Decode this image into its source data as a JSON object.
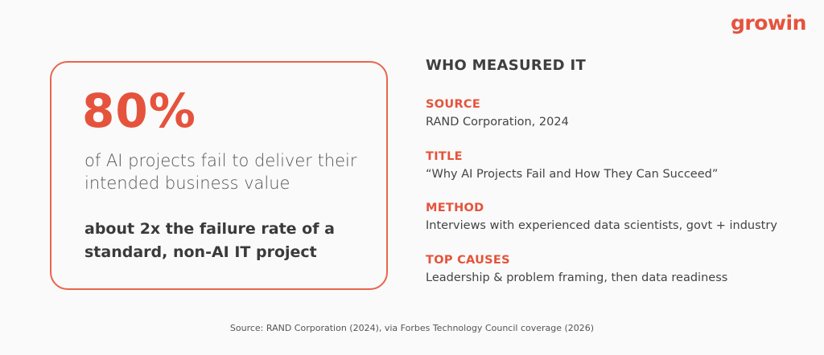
{
  "brand": {
    "logo_text": "growin",
    "accent_color": "#e5533c"
  },
  "stat_card": {
    "number": "80%",
    "description": "of AI projects fail to deliver their intended business value",
    "comparison": "about 2x the failure rate of a standard, non-AI IT project"
  },
  "details": {
    "title": "WHO MEASURED IT",
    "items": [
      {
        "label": "SOURCE",
        "value": "RAND Corporation, 2024"
      },
      {
        "label": "TITLE",
        "value": "“Why AI Projects Fail and How They Can Succeed”"
      },
      {
        "label": "METHOD",
        "value": "Interviews with experienced data scientists, govt + industry"
      },
      {
        "label": "TOP CAUSES",
        "value": "Leadership & problem framing, then data readiness"
      }
    ]
  },
  "footer": {
    "source_note": "Source: RAND Corporation (2024), via Forbes Technology Council coverage (2026)"
  }
}
